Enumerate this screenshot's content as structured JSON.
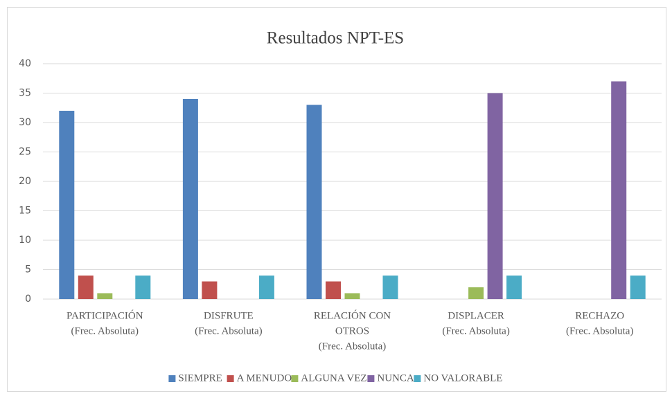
{
  "chart_data": {
    "type": "bar",
    "title": "Resultados NPT-ES",
    "categories": [
      [
        "PARTICIPACIÓN",
        "(Frec. Absoluta)"
      ],
      [
        "DISFRUTE",
        "(Frec. Absoluta)"
      ],
      [
        "RELACIÓN CON",
        "OTROS",
        "(Frec. Absoluta)"
      ],
      [
        "DISPLACER",
        "(Frec. Absoluta)"
      ],
      [
        "RECHAZO",
        "(Frec. Absoluta)"
      ]
    ],
    "series": [
      {
        "name": "SIEMPRE",
        "color": "#4f81bd",
        "values": [
          32,
          34,
          33,
          null,
          null
        ]
      },
      {
        "name": "A MENUDO",
        "color": "#c0504d",
        "values": [
          4,
          3,
          3,
          null,
          null
        ]
      },
      {
        "name": "ALGUNA VEZ",
        "color": "#9bbb59",
        "values": [
          1,
          null,
          1,
          2,
          null
        ]
      },
      {
        "name": "NUNCA",
        "color": "#8064a2",
        "values": [
          null,
          null,
          null,
          35,
          37
        ]
      },
      {
        "name": "NO VALORABLE",
        "color": "#4bacc6",
        "values": [
          4,
          4,
          4,
          4,
          4
        ]
      }
    ],
    "ylim": [
      0,
      40
    ],
    "yticks": [
      0,
      5,
      10,
      15,
      20,
      25,
      30,
      35,
      40
    ],
    "grid": true,
    "legend": "bottom"
  }
}
